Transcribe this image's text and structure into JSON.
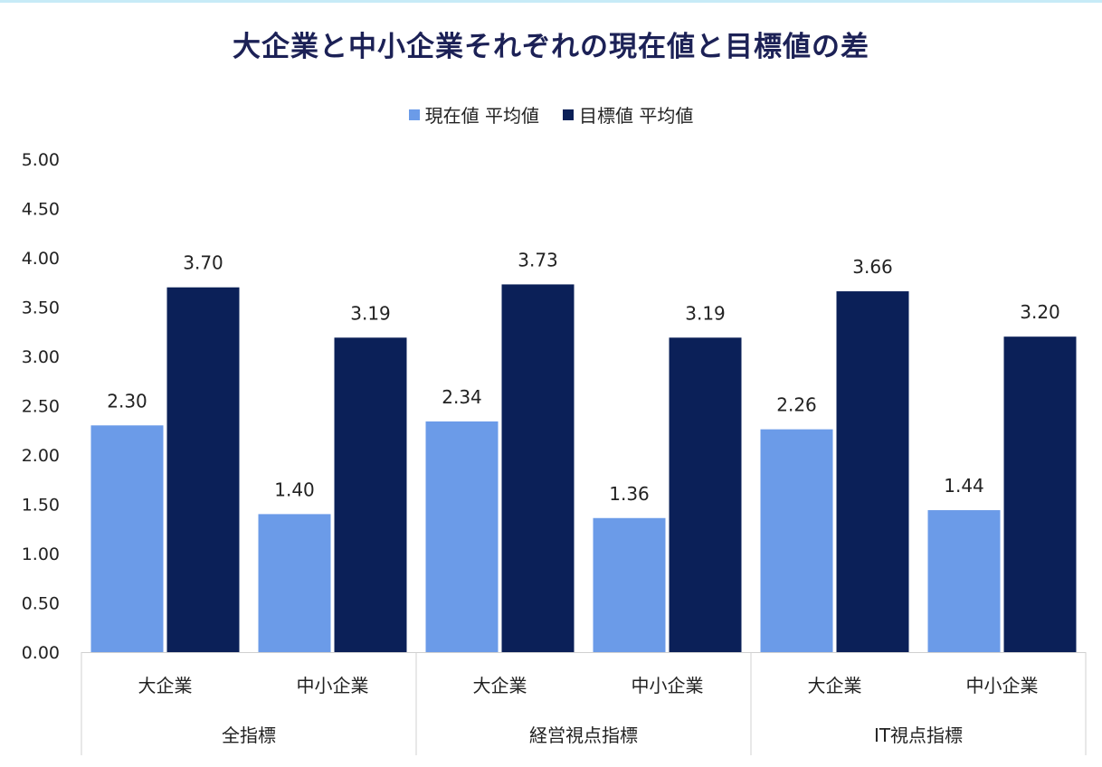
{
  "chart_data": {
    "type": "bar",
    "title": "大企業と中小企業それぞれの現在値と目標値の差",
    "groups": [
      {
        "label": "全指標",
        "categories": [
          "大企業",
          "中小企業"
        ]
      },
      {
        "label": "経営視点指標",
        "categories": [
          "大企業",
          "中小企業"
        ]
      },
      {
        "label": "IT視点指標",
        "categories": [
          "大企業",
          "中小企業"
        ]
      }
    ],
    "series": [
      {
        "name": "現在値 平均値",
        "color": "#6b9be8",
        "values": [
          2.3,
          1.4,
          2.34,
          1.36,
          2.26,
          1.44
        ]
      },
      {
        "name": "目標値 平均値",
        "color": "#0b2058",
        "values": [
          3.7,
          3.19,
          3.73,
          3.19,
          3.66,
          3.2
        ]
      }
    ],
    "ylim": [
      0,
      5
    ],
    "yticks": [
      "0.00",
      "0.50",
      "1.00",
      "1.50",
      "2.00",
      "2.50",
      "3.00",
      "3.50",
      "4.00",
      "4.50",
      "5.00"
    ],
    "legend_position": "top",
    "grid": false
  }
}
